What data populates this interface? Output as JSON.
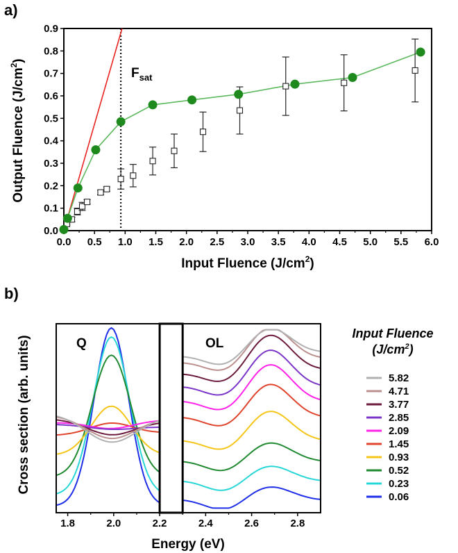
{
  "chart_data": [
    {
      "panel_label": "a)",
      "type": "scatter",
      "xlabel_main": "Input Fluence (J/cm",
      "xlabel_sup": "2",
      "xlabel_end": ")",
      "ylabel_main": "Output Fluence (J/cm",
      "ylabel_sup": "2",
      "ylabel_end": ")",
      "xlim": [
        0,
        6.0
      ],
      "ylim": [
        0,
        0.9
      ],
      "xticks": [
        "0.0",
        "0.5",
        "1.0",
        "1.5",
        "2.0",
        "2.5",
        "3.0",
        "3.5",
        "4.0",
        "4.5",
        "5.0",
        "5.5",
        "6.0"
      ],
      "yticks": [
        "0.0",
        "0.1",
        "0.2",
        "0.3",
        "0.4",
        "0.5",
        "0.6",
        "0.7",
        "0.8",
        "0.9"
      ],
      "grid": false,
      "annotation_main": "F",
      "annotation_sub": "sat",
      "fsat_x": 0.93,
      "colors": {
        "green": "#1e8a1e",
        "green_line": "#5cb85c",
        "red": "#e8231f",
        "black": "#000000"
      },
      "series": [
        {
          "style": "filled-circles-line",
          "x": [
            0.0,
            0.06,
            0.23,
            0.52,
            0.93,
            1.45,
            2.09,
            2.85,
            3.77,
            4.71,
            5.82
          ],
          "y": [
            0.005,
            0.055,
            0.19,
            0.36,
            0.485,
            0.56,
            0.582,
            0.607,
            0.652,
            0.682,
            0.795
          ]
        },
        {
          "style": "open-squares-errorbars",
          "x": [
            0.05,
            0.13,
            0.22,
            0.3,
            0.38,
            0.6,
            0.7,
            0.93,
            1.13,
            1.45,
            1.8,
            2.27,
            2.87,
            3.62,
            4.57,
            5.73
          ],
          "y": [
            0.03,
            0.05,
            0.085,
            0.108,
            0.128,
            0.17,
            0.185,
            0.23,
            0.245,
            0.31,
            0.355,
            0.44,
            0.535,
            0.643,
            0.658,
            0.713
          ],
          "err": [
            0.005,
            0.01,
            0.015,
            0.018,
            0.01,
            0.01,
            0.01,
            0.045,
            0.05,
            0.062,
            0.075,
            0.088,
            0.105,
            0.13,
            0.125,
            0.14
          ]
        },
        {
          "style": "red-line",
          "x": [
            0.0,
            0.95
          ],
          "y": [
            0.0,
            0.9
          ]
        }
      ]
    },
    {
      "panel_label": "b)",
      "type": "line",
      "xlabel": "Energy (eV)",
      "ylabel": "Cross section (arb. units)",
      "xlim": [
        1.75,
        2.9
      ],
      "xticks": [
        "1.8",
        "2.0",
        "2.2",
        "2.4",
        "2.6",
        "2.8"
      ],
      "gap_range": [
        2.2,
        2.3
      ],
      "region_labels": [
        "Q",
        "OL"
      ],
      "legend_title": "Input Fluence",
      "legend_unit_main": "(J/cm",
      "legend_unit_sup": "2",
      "legend_unit_end": ")",
      "series": [
        {
          "name": "5.82",
          "color": "#b0b0b0"
        },
        {
          "name": "4.71",
          "color": "#bc8f8f"
        },
        {
          "name": "3.77",
          "color": "#6b1a3c"
        },
        {
          "name": "2.85",
          "color": "#7b35c8"
        },
        {
          "name": "2.09",
          "color": "#ff22e8"
        },
        {
          "name": "1.45",
          "color": "#e0442c"
        },
        {
          "name": "0.93",
          "color": "#f5c518"
        },
        {
          "name": "0.52",
          "color": "#208a30"
        },
        {
          "name": "0.23",
          "color": "#27d6d6"
        },
        {
          "name": "0.06",
          "color": "#1f2fe8"
        }
      ],
      "q_peaks": [
        0.38,
        0.4,
        0.42,
        0.45,
        0.44,
        0.47,
        0.57,
        0.85,
        0.95,
        1.0
      ],
      "q_bases": [
        0.53,
        0.52,
        0.5,
        0.47,
        0.48,
        0.41,
        0.3,
        0.18,
        0.08,
        0.02
      ],
      "ol_levels": [
        0.93,
        0.92,
        0.87,
        0.8,
        0.72,
        0.62,
        0.48,
        0.33,
        0.21,
        0.1
      ],
      "ol_bumps": [
        0.14,
        0.18,
        0.2,
        0.2,
        0.2,
        0.18,
        0.16,
        0.1,
        0.08,
        0.07
      ]
    }
  ]
}
